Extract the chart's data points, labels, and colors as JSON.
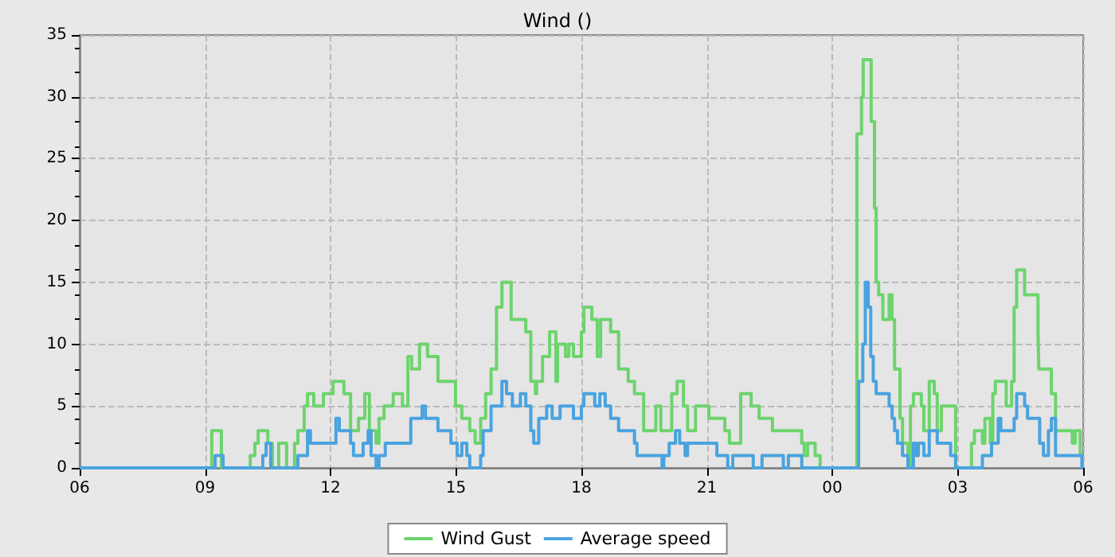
{
  "chart_data": {
    "type": "step",
    "title": "Wind ()",
    "xlim": [
      6,
      30
    ],
    "xticks": [
      {
        "value": 6,
        "label": "06"
      },
      {
        "value": 9,
        "label": "09"
      },
      {
        "value": 12,
        "label": "12"
      },
      {
        "value": 15,
        "label": "15"
      },
      {
        "value": 18,
        "label": "18"
      },
      {
        "value": 21,
        "label": "21"
      },
      {
        "value": 24,
        "label": "00"
      },
      {
        "value": 27,
        "label": "03"
      },
      {
        "value": 30,
        "label": "06"
      }
    ],
    "ylim": [
      0,
      35
    ],
    "yticks": [
      0,
      5,
      10,
      15,
      20,
      25,
      30,
      35
    ],
    "grid": true,
    "legend": "bottom",
    "marker": "none",
    "line_style": "solid",
    "series": [
      {
        "name": "Wind Gust",
        "color": "#6dd46d",
        "x": [
          6.0,
          9.16,
          9.39,
          10.08,
          10.19,
          10.27,
          10.5,
          10.61,
          10.76,
          10.95,
          11.14,
          11.22,
          11.37,
          11.45,
          11.6,
          11.83,
          12.06,
          12.32,
          12.48,
          12.67,
          12.82,
          12.93,
          13.09,
          13.16,
          13.28,
          13.5,
          13.72,
          13.85,
          13.94,
          14.13,
          14.32,
          14.57,
          14.99,
          15.14,
          15.33,
          15.46,
          15.59,
          15.71,
          15.84,
          15.97,
          16.1,
          16.32,
          16.67,
          16.79,
          16.9,
          16.93,
          17.07,
          17.24,
          17.39,
          17.43,
          17.62,
          17.7,
          17.81,
          18.0,
          18.06,
          18.25,
          18.38,
          18.46,
          18.7,
          18.89,
          19.12,
          19.27,
          19.49,
          19.78,
          19.9,
          20.16,
          20.29,
          20.44,
          20.54,
          20.73,
          21.05,
          21.43,
          21.54,
          21.81,
          22.06,
          22.25,
          22.57,
          23.27,
          23.33,
          23.41,
          23.59,
          23.71,
          24.59,
          24.7,
          24.74,
          24.93,
          25.01,
          25.05,
          25.11,
          25.21,
          25.36,
          25.43,
          25.49,
          25.62,
          25.68,
          25.81,
          25.87,
          25.94,
          26.13,
          26.19,
          26.32,
          26.44,
          26.51,
          26.61,
          26.95,
          27.33,
          27.4,
          27.59,
          27.65,
          27.78,
          27.84,
          27.9,
          28.16,
          28.29,
          28.35,
          28.41,
          28.6,
          28.92,
          28.94,
          29.24,
          29.34,
          29.74,
          29.81,
          29.93,
          30.0
        ],
        "values": [
          0,
          3,
          0,
          1,
          2,
          3,
          2,
          0,
          2,
          0,
          2,
          3,
          5,
          6,
          5,
          6,
          7,
          6,
          3,
          4,
          6,
          3,
          2,
          4,
          5,
          6,
          5,
          9,
          8,
          10,
          9,
          7,
          5,
          4,
          3,
          2,
          4,
          6,
          8,
          13,
          15,
          12,
          11,
          7,
          6,
          7,
          9,
          11,
          7,
          10,
          9,
          10,
          9,
          11,
          13,
          12,
          9,
          12,
          11,
          8,
          7,
          6,
          3,
          5,
          3,
          6,
          7,
          5,
          3,
          5,
          4,
          3,
          2,
          6,
          5,
          4,
          3,
          2,
          1,
          2,
          1,
          0,
          27,
          30,
          33,
          28,
          21,
          15,
          14,
          12,
          14,
          12,
          8,
          4,
          2,
          0,
          5,
          6,
          5,
          3,
          7,
          6,
          3,
          5,
          0,
          2,
          3,
          2,
          4,
          2,
          6,
          7,
          5,
          7,
          13,
          16,
          14,
          11,
          8,
          6,
          3,
          2,
          3,
          1,
          1
        ]
      },
      {
        "name": "Average speed",
        "color": "#4aa3df",
        "x": [
          6.0,
          9.24,
          9.43,
          10.38,
          10.46,
          10.57,
          11.22,
          11.45,
          11.52,
          12.13,
          12.21,
          12.48,
          12.55,
          12.78,
          12.9,
          12.97,
          13.09,
          13.16,
          13.31,
          13.92,
          14.19,
          14.27,
          14.57,
          14.88,
          15.03,
          15.14,
          15.26,
          15.33,
          15.59,
          15.65,
          15.84,
          16.1,
          16.21,
          16.35,
          16.54,
          16.67,
          16.79,
          16.86,
          16.98,
          17.17,
          17.3,
          17.49,
          17.81,
          18.0,
          18.06,
          18.32,
          18.44,
          18.57,
          18.7,
          18.89,
          19.27,
          19.33,
          19.93,
          19.97,
          20.1,
          20.25,
          20.35,
          20.48,
          20.54,
          21.24,
          21.5,
          21.62,
          22.11,
          22.32,
          22.83,
          22.95,
          23.27,
          24.63,
          24.73,
          24.79,
          24.86,
          24.92,
          24.98,
          25.05,
          25.36,
          25.43,
          25.49,
          25.56,
          25.68,
          25.81,
          25.94,
          26.0,
          26.06,
          26.19,
          26.32,
          26.51,
          26.83,
          26.95,
          27.59,
          27.81,
          27.97,
          28.03,
          28.35,
          28.41,
          28.6,
          28.67,
          28.96,
          29.05,
          29.17,
          29.24,
          29.34,
          29.97,
          30.0
        ],
        "values": [
          0,
          1,
          0,
          1,
          2,
          0,
          1,
          3,
          2,
          4,
          3,
          2,
          1,
          2,
          3,
          1,
          0,
          1,
          2,
          4,
          5,
          4,
          3,
          2,
          1,
          2,
          1,
          0,
          1,
          3,
          5,
          7,
          6,
          5,
          6,
          5,
          3,
          2,
          4,
          5,
          4,
          5,
          4,
          5,
          6,
          5,
          6,
          5,
          4,
          3,
          2,
          1,
          0,
          1,
          2,
          3,
          2,
          1,
          2,
          1,
          0,
          1,
          0,
          1,
          0,
          1,
          0,
          7,
          10,
          15,
          13,
          9,
          7,
          6,
          5,
          4,
          3,
          2,
          1,
          0,
          2,
          1,
          2,
          1,
          3,
          2,
          1,
          0,
          1,
          2,
          4,
          3,
          4,
          6,
          5,
          4,
          2,
          1,
          3,
          4,
          1,
          0,
          0
        ]
      }
    ]
  }
}
